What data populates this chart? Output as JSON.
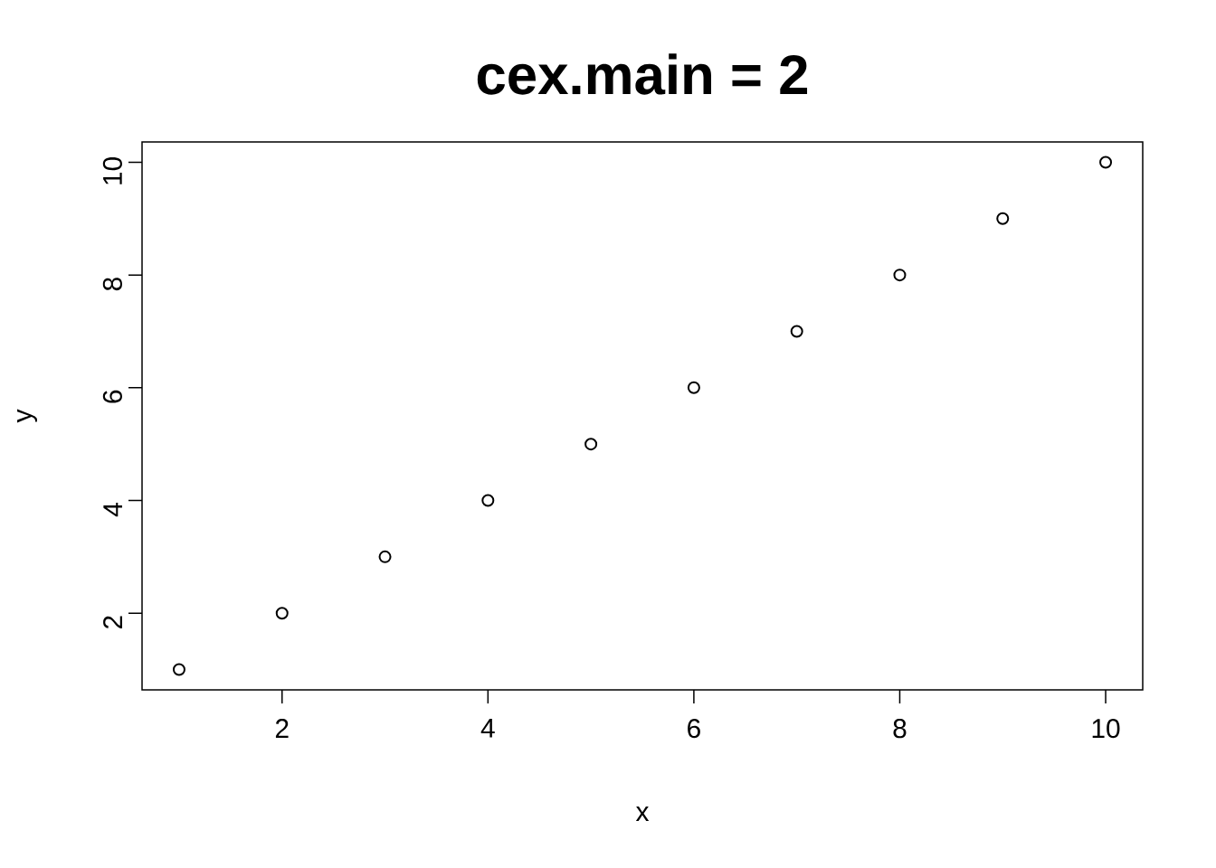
{
  "chart_data": {
    "type": "scatter",
    "title": "cex.main = 2",
    "xlabel": "x",
    "ylabel": "y",
    "x": [
      1,
      2,
      3,
      4,
      5,
      6,
      7,
      8,
      9,
      10
    ],
    "values": [
      1,
      2,
      3,
      4,
      5,
      6,
      7,
      8,
      9,
      10
    ],
    "color": "#000000",
    "marker": "circle",
    "xlim": [
      0.64,
      10.36
    ],
    "ylim": [
      0.64,
      10.36
    ],
    "xticks": [
      2,
      4,
      6,
      8,
      10
    ],
    "yticks": [
      2,
      4,
      6,
      8,
      10
    ]
  }
}
